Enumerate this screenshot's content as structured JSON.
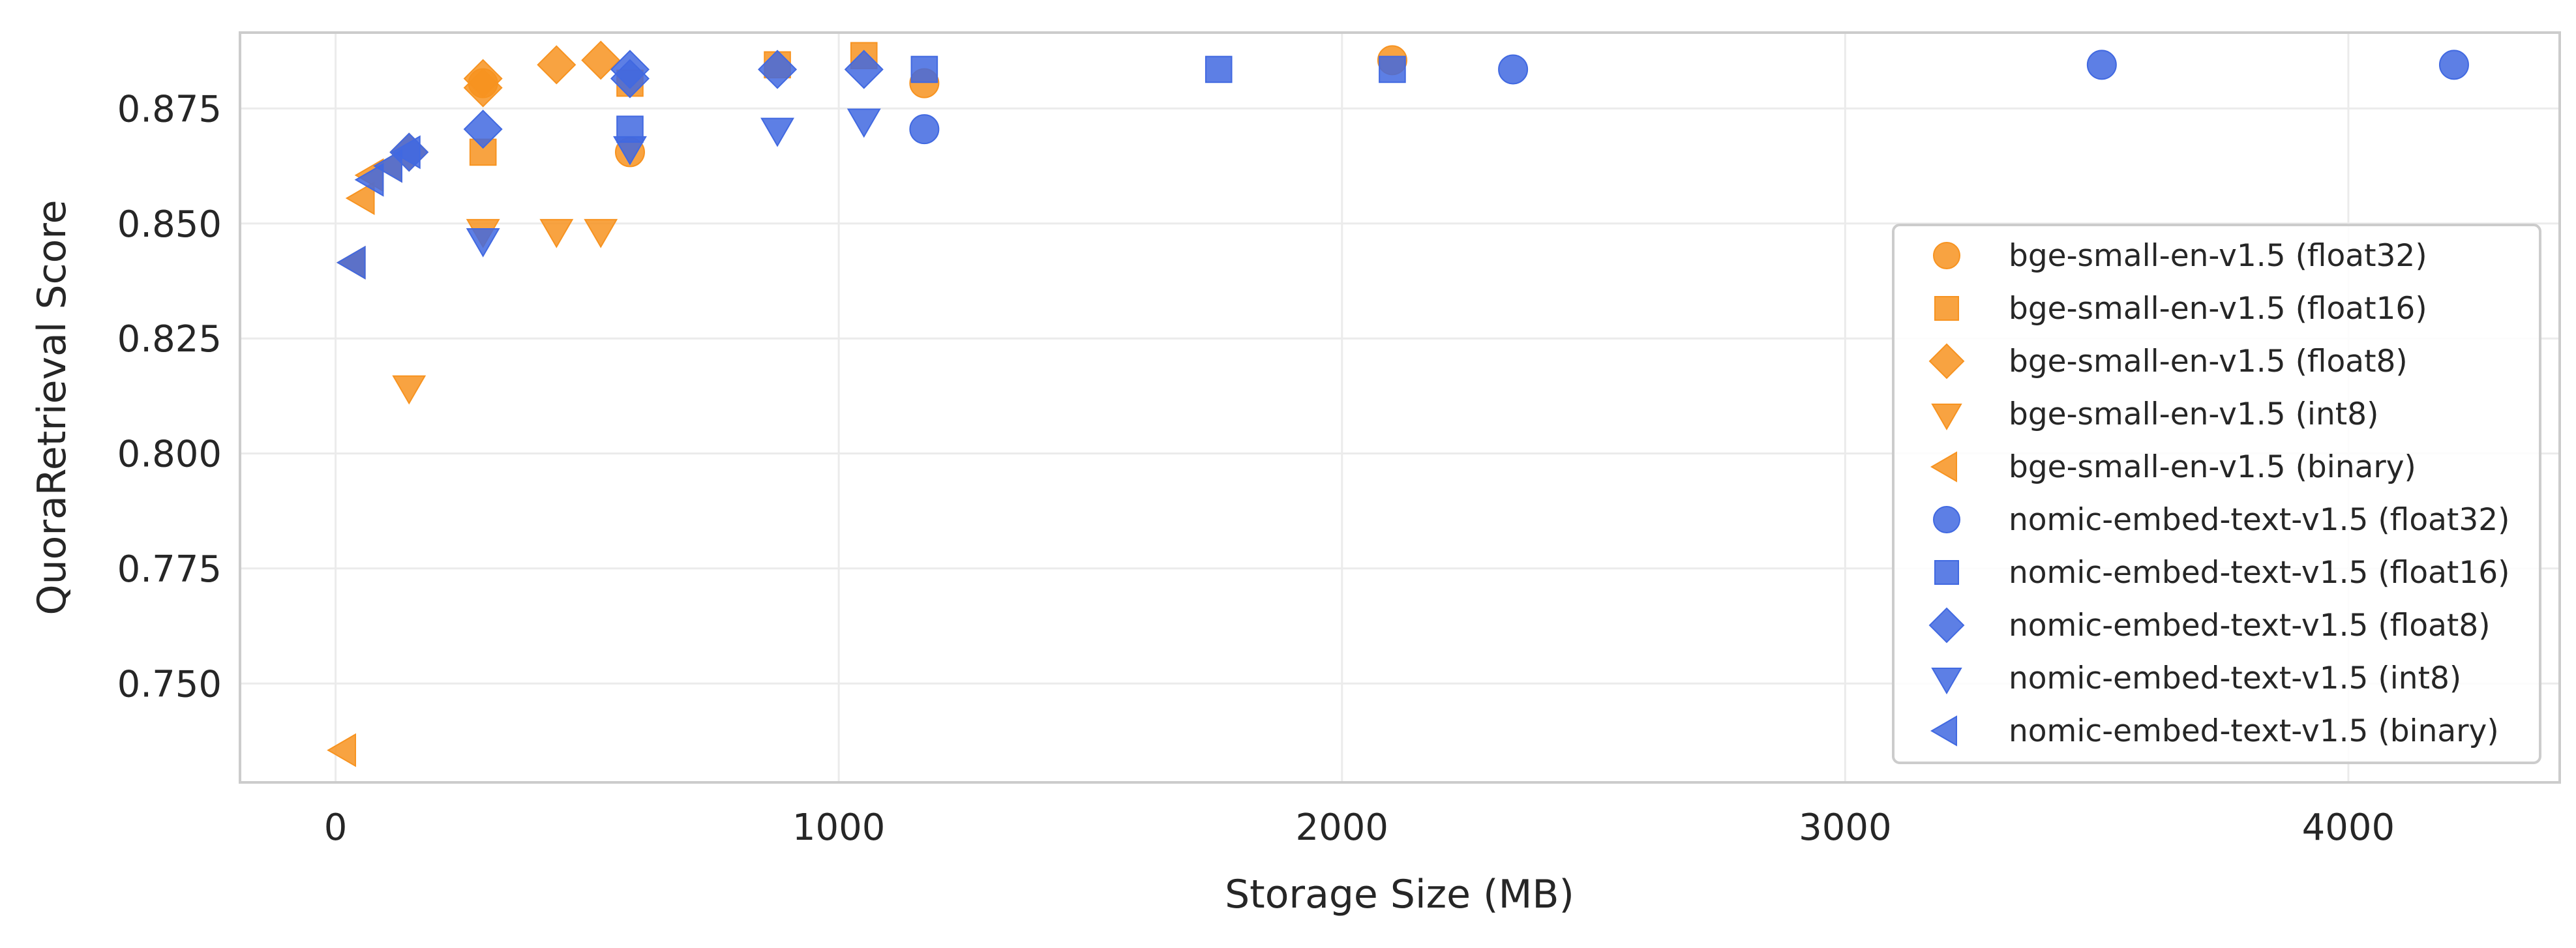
{
  "chart_data": {
    "type": "scatter",
    "title": "",
    "xlabel": "Storage Size (MB)",
    "ylabel": "QuoraRetrieval Score",
    "xlim": [
      -190,
      4420
    ],
    "ylim": [
      0.7285,
      0.8915
    ],
    "x_ticks": [
      0,
      1000,
      2000,
      3000,
      4000
    ],
    "x_tick_labels": [
      "0",
      "1000",
      "2000",
      "3000",
      "4000"
    ],
    "y_ticks": [
      0.75,
      0.775,
      0.8,
      0.825,
      0.85,
      0.875
    ],
    "y_tick_labels": [
      "0.750",
      "0.775",
      "0.800",
      "0.825",
      "0.850",
      "0.875"
    ],
    "grid": true,
    "legend_position": "lower-right",
    "colors": {
      "bge": "#f79320",
      "nomic": "#4169e1"
    },
    "series": [
      {
        "name": "bge-small-en-v1.5 (float32)",
        "marker": "circle",
        "color": "#f79320",
        "x": [
          293,
          585,
          1170,
          2100
        ],
        "y": [
          0.8805,
          0.8655,
          0.8805,
          0.8855
        ]
      },
      {
        "name": "bge-small-en-v1.5 (float16)",
        "marker": "square",
        "color": "#f79320",
        "x": [
          293,
          585,
          878,
          1050
        ],
        "y": [
          0.8655,
          0.8805,
          0.8845,
          0.8865
        ]
      },
      {
        "name": "bge-small-en-v1.5 (float8)",
        "marker": "diamond",
        "color": "#f79320",
        "x": [
          146,
          293,
          293,
          439,
          527
        ],
        "y": [
          0.8655,
          0.8795,
          0.8815,
          0.8845,
          0.8855
        ]
      },
      {
        "name": "bge-small-en-v1.5 (int8)",
        "marker": "triangle-down",
        "color": "#f79320",
        "x": [
          146,
          293,
          439,
          527
        ],
        "y": [
          0.8145,
          0.8485,
          0.8485,
          0.8485
        ]
      },
      {
        "name": "bge-small-en-v1.5 (binary)",
        "marker": "triangle-left",
        "color": "#f79320",
        "x": [
          18,
          37,
          55,
          73,
          110
        ],
        "y": [
          0.7355,
          0.8415,
          0.8555,
          0.8605,
          0.8625
        ]
      },
      {
        "name": "nomic-embed-text-v1.5 (float32)",
        "marker": "circle",
        "color": "#4169e1",
        "x": [
          1170,
          2340,
          3510,
          4210
        ],
        "y": [
          0.8705,
          0.8835,
          0.8845,
          0.8845
        ]
      },
      {
        "name": "nomic-embed-text-v1.5 (float16)",
        "marker": "square",
        "color": "#4169e1",
        "x": [
          585,
          1170,
          1755,
          2100
        ],
        "y": [
          0.8705,
          0.8835,
          0.8835,
          0.8835
        ]
      },
      {
        "name": "nomic-embed-text-v1.5 (float8)",
        "marker": "diamond",
        "color": "#4169e1",
        "x": [
          146,
          293,
          585,
          585,
          878,
          1050
        ],
        "y": [
          0.8655,
          0.8705,
          0.8815,
          0.8835,
          0.8835,
          0.8835
        ]
      },
      {
        "name": "nomic-embed-text-v1.5 (int8)",
        "marker": "triangle-down",
        "color": "#4169e1",
        "x": [
          293,
          585,
          878,
          1050
        ],
        "y": [
          0.8465,
          0.8665,
          0.8705,
          0.8725
        ]
      },
      {
        "name": "nomic-embed-text-v1.5 (binary)",
        "marker": "triangle-left",
        "color": "#4169e1",
        "x": [
          37,
          73,
          110,
          146
        ],
        "y": [
          0.8415,
          0.8595,
          0.8625,
          0.8655
        ]
      }
    ]
  }
}
